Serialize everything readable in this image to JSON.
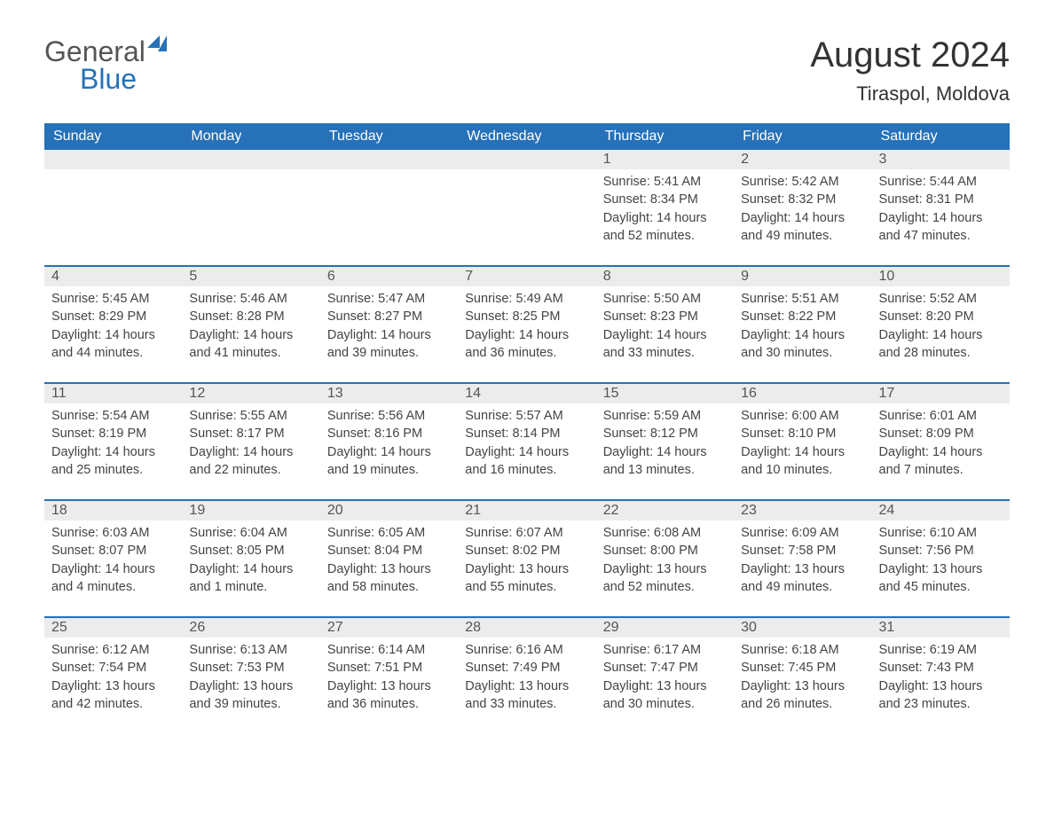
{
  "logo": {
    "text1": "General",
    "text2": "Blue"
  },
  "title": "August 2024",
  "location": "Tiraspol, Moldova",
  "header_bg": "#2671b8",
  "daynum_bg": "#ececec",
  "text_color": "#444",
  "weekdays": [
    "Sunday",
    "Monday",
    "Tuesday",
    "Wednesday",
    "Thursday",
    "Friday",
    "Saturday"
  ],
  "weeks": [
    [
      null,
      null,
      null,
      null,
      {
        "d": "1",
        "sr": "5:41 AM",
        "ss": "8:34 PM",
        "dl": "14 hours and 52 minutes."
      },
      {
        "d": "2",
        "sr": "5:42 AM",
        "ss": "8:32 PM",
        "dl": "14 hours and 49 minutes."
      },
      {
        "d": "3",
        "sr": "5:44 AM",
        "ss": "8:31 PM",
        "dl": "14 hours and 47 minutes."
      }
    ],
    [
      {
        "d": "4",
        "sr": "5:45 AM",
        "ss": "8:29 PM",
        "dl": "14 hours and 44 minutes."
      },
      {
        "d": "5",
        "sr": "5:46 AM",
        "ss": "8:28 PM",
        "dl": "14 hours and 41 minutes."
      },
      {
        "d": "6",
        "sr": "5:47 AM",
        "ss": "8:27 PM",
        "dl": "14 hours and 39 minutes."
      },
      {
        "d": "7",
        "sr": "5:49 AM",
        "ss": "8:25 PM",
        "dl": "14 hours and 36 minutes."
      },
      {
        "d": "8",
        "sr": "5:50 AM",
        "ss": "8:23 PM",
        "dl": "14 hours and 33 minutes."
      },
      {
        "d": "9",
        "sr": "5:51 AM",
        "ss": "8:22 PM",
        "dl": "14 hours and 30 minutes."
      },
      {
        "d": "10",
        "sr": "5:52 AM",
        "ss": "8:20 PM",
        "dl": "14 hours and 28 minutes."
      }
    ],
    [
      {
        "d": "11",
        "sr": "5:54 AM",
        "ss": "8:19 PM",
        "dl": "14 hours and 25 minutes."
      },
      {
        "d": "12",
        "sr": "5:55 AM",
        "ss": "8:17 PM",
        "dl": "14 hours and 22 minutes."
      },
      {
        "d": "13",
        "sr": "5:56 AM",
        "ss": "8:16 PM",
        "dl": "14 hours and 19 minutes."
      },
      {
        "d": "14",
        "sr": "5:57 AM",
        "ss": "8:14 PM",
        "dl": "14 hours and 16 minutes."
      },
      {
        "d": "15",
        "sr": "5:59 AM",
        "ss": "8:12 PM",
        "dl": "14 hours and 13 minutes."
      },
      {
        "d": "16",
        "sr": "6:00 AM",
        "ss": "8:10 PM",
        "dl": "14 hours and 10 minutes."
      },
      {
        "d": "17",
        "sr": "6:01 AM",
        "ss": "8:09 PM",
        "dl": "14 hours and 7 minutes."
      }
    ],
    [
      {
        "d": "18",
        "sr": "6:03 AM",
        "ss": "8:07 PM",
        "dl": "14 hours and 4 minutes."
      },
      {
        "d": "19",
        "sr": "6:04 AM",
        "ss": "8:05 PM",
        "dl": "14 hours and 1 minute."
      },
      {
        "d": "20",
        "sr": "6:05 AM",
        "ss": "8:04 PM",
        "dl": "13 hours and 58 minutes."
      },
      {
        "d": "21",
        "sr": "6:07 AM",
        "ss": "8:02 PM",
        "dl": "13 hours and 55 minutes."
      },
      {
        "d": "22",
        "sr": "6:08 AM",
        "ss": "8:00 PM",
        "dl": "13 hours and 52 minutes."
      },
      {
        "d": "23",
        "sr": "6:09 AM",
        "ss": "7:58 PM",
        "dl": "13 hours and 49 minutes."
      },
      {
        "d": "24",
        "sr": "6:10 AM",
        "ss": "7:56 PM",
        "dl": "13 hours and 45 minutes."
      }
    ],
    [
      {
        "d": "25",
        "sr": "6:12 AM",
        "ss": "7:54 PM",
        "dl": "13 hours and 42 minutes."
      },
      {
        "d": "26",
        "sr": "6:13 AM",
        "ss": "7:53 PM",
        "dl": "13 hours and 39 minutes."
      },
      {
        "d": "27",
        "sr": "6:14 AM",
        "ss": "7:51 PM",
        "dl": "13 hours and 36 minutes."
      },
      {
        "d": "28",
        "sr": "6:16 AM",
        "ss": "7:49 PM",
        "dl": "13 hours and 33 minutes."
      },
      {
        "d": "29",
        "sr": "6:17 AM",
        "ss": "7:47 PM",
        "dl": "13 hours and 30 minutes."
      },
      {
        "d": "30",
        "sr": "6:18 AM",
        "ss": "7:45 PM",
        "dl": "13 hours and 26 minutes."
      },
      {
        "d": "31",
        "sr": "6:19 AM",
        "ss": "7:43 PM",
        "dl": "13 hours and 23 minutes."
      }
    ]
  ],
  "labels": {
    "sunrise": "Sunrise:",
    "sunset": "Sunset:",
    "daylight": "Daylight:"
  }
}
